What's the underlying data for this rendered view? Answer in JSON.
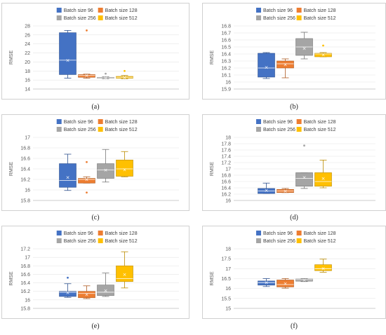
{
  "colors": {
    "s96": "#4472C4",
    "s128": "#ED7D31",
    "s256": "#A5A5A5",
    "s512": "#FFC000"
  },
  "chart_data": [
    {
      "type": "box",
      "caption": "(a)",
      "ylabel": "RMSE",
      "ylim": [
        14,
        28
      ],
      "yticks": [
        "14",
        "16",
        "18",
        "20",
        "22",
        "24",
        "26",
        "28"
      ],
      "series": [
        {
          "name": "Batch size 96",
          "min": 16.4,
          "q1": 17.2,
          "median": 20.4,
          "q3": 26.5,
          "max": 27.0,
          "mean": 20.4,
          "outliers": []
        },
        {
          "name": "Batch size 128",
          "min": 16.4,
          "q1": 16.6,
          "median": 17.0,
          "q3": 17.2,
          "max": 17.3,
          "mean": 17.0,
          "outliers": [
            27.0
          ]
        },
        {
          "name": "Batch size 256",
          "min": 16.3,
          "q1": 16.4,
          "median": 16.5,
          "q3": 16.6,
          "max": 16.7,
          "mean": 16.5,
          "outliers": [
            17.4
          ]
        },
        {
          "name": "Batch size 512",
          "min": 16.3,
          "q1": 16.4,
          "median": 16.6,
          "q3": 16.8,
          "max": 17.0,
          "mean": 16.6,
          "outliers": [
            18.0
          ]
        }
      ]
    },
    {
      "type": "box",
      "caption": "(b)",
      "ylabel": "RMSE",
      "ylim": [
        15.9,
        16.8
      ],
      "yticks": [
        "15.9",
        "16",
        "16.1",
        "16.2",
        "16.3",
        "16.4",
        "16.5",
        "16.6",
        "16.7",
        "16.8"
      ],
      "series": [
        {
          "name": "Batch size 96",
          "min": 16.05,
          "q1": 16.07,
          "median": 16.2,
          "q3": 16.41,
          "max": 16.42,
          "mean": 16.21,
          "outliers": []
        },
        {
          "name": "Batch size 128",
          "min": 16.06,
          "q1": 16.2,
          "median": 16.26,
          "q3": 16.3,
          "max": 16.33,
          "mean": 16.25,
          "outliers": []
        },
        {
          "name": "Batch size 256",
          "min": 16.33,
          "q1": 16.38,
          "median": 16.5,
          "q3": 16.62,
          "max": 16.71,
          "mean": 16.48,
          "outliers": []
        },
        {
          "name": "Batch size 512",
          "min": 16.36,
          "q1": 16.36,
          "median": 16.4,
          "q3": 16.41,
          "max": 16.42,
          "mean": 16.39,
          "outliers": [
            16.52
          ]
        }
      ]
    },
    {
      "type": "box",
      "caption": "(c)",
      "ylabel": "RMSE",
      "ylim": [
        15.8,
        17.0
      ],
      "yticks": [
        "15.8",
        "16",
        "16.2",
        "16.4",
        "16.6",
        "16.8",
        "17"
      ],
      "series": [
        {
          "name": "Batch size 96",
          "min": 15.99,
          "q1": 16.05,
          "median": 16.18,
          "q3": 16.5,
          "max": 16.68,
          "mean": 16.24,
          "outliers": []
        },
        {
          "name": "Batch size 128",
          "min": 16.13,
          "q1": 16.13,
          "median": 16.2,
          "q3": 16.22,
          "max": 16.25,
          "mean": 16.2,
          "outliers": [
            16.53,
            15.95
          ]
        },
        {
          "name": "Batch size 256",
          "min": 16.15,
          "q1": 16.22,
          "median": 16.38,
          "q3": 16.5,
          "max": 16.77,
          "mean": 16.38,
          "outliers": []
        },
        {
          "name": "Batch size 512",
          "min": 16.25,
          "q1": 16.26,
          "median": 16.4,
          "q3": 16.57,
          "max": 16.73,
          "mean": 16.39,
          "outliers": []
        }
      ]
    },
    {
      "type": "box",
      "caption": "(d)",
      "ylabel": "RMSE",
      "ylim": [
        16,
        18
      ],
      "yticks": [
        "16",
        "16.2",
        "16.4",
        "16.6",
        "16.8",
        "17",
        "17.2",
        "17.4",
        "17.6",
        "17.8",
        "18"
      ],
      "series": [
        {
          "name": "Batch size 96",
          "min": 16.22,
          "q1": 16.22,
          "median": 16.3,
          "q3": 16.38,
          "max": 16.55,
          "mean": 16.32,
          "outliers": []
        },
        {
          "name": "Batch size 128",
          "min": 16.25,
          "q1": 16.25,
          "median": 16.3,
          "q3": 16.35,
          "max": 16.38,
          "mean": 16.3,
          "outliers": []
        },
        {
          "name": "Batch size 256",
          "min": 16.38,
          "q1": 16.45,
          "median": 16.7,
          "q3": 16.88,
          "max": 16.88,
          "mean": 16.73,
          "outliers": [
            17.74
          ]
        },
        {
          "name": "Batch size 512",
          "min": 16.4,
          "q1": 16.45,
          "median": 16.6,
          "q3": 16.88,
          "max": 17.28,
          "mean": 16.7,
          "outliers": []
        }
      ]
    },
    {
      "type": "box",
      "caption": "(e)",
      "ylabel": "RMSE",
      "ylim": [
        15.8,
        17.2
      ],
      "yticks": [
        "15.8",
        "16",
        "16.2",
        "16.4",
        "16.6",
        "16.8",
        "17",
        "17.2"
      ],
      "series": [
        {
          "name": "Batch size 96",
          "min": 16.06,
          "q1": 16.08,
          "median": 16.18,
          "q3": 16.2,
          "max": 16.38,
          "mean": 16.17,
          "outliers": [
            16.52
          ]
        },
        {
          "name": "Batch size 128",
          "min": 16.03,
          "q1": 16.05,
          "median": 16.15,
          "q3": 16.2,
          "max": 16.33,
          "mean": 16.13,
          "outliers": []
        },
        {
          "name": "Batch size 256",
          "min": 16.08,
          "q1": 16.1,
          "median": 16.18,
          "q3": 16.35,
          "max": 16.63,
          "mean": 16.22,
          "outliers": []
        },
        {
          "name": "Batch size 512",
          "min": 16.28,
          "q1": 16.43,
          "median": 16.5,
          "q3": 16.8,
          "max": 17.13,
          "mean": 16.6,
          "outliers": []
        }
      ]
    },
    {
      "type": "box",
      "caption": "(f)",
      "ylabel": "RMSE",
      "ylim": [
        15,
        18
      ],
      "yticks": [
        "15",
        "15.5",
        "16",
        "16.5",
        "17",
        "17.5",
        "18"
      ],
      "series": [
        {
          "name": "Batch size 96",
          "min": 16.1,
          "q1": 16.17,
          "median": 16.3,
          "q3": 16.38,
          "max": 16.5,
          "mean": 16.3,
          "outliers": []
        },
        {
          "name": "Batch size 128",
          "min": 16.02,
          "q1": 16.08,
          "median": 16.2,
          "q3": 16.43,
          "max": 16.5,
          "mean": 16.25,
          "outliers": []
        },
        {
          "name": "Batch size 256",
          "min": 16.35,
          "q1": 16.37,
          "median": 16.45,
          "q3": 16.48,
          "max": 16.5,
          "mean": 16.43,
          "outliers": []
        },
        {
          "name": "Batch size 512",
          "min": 16.82,
          "q1": 16.9,
          "median": 17.0,
          "q3": 17.2,
          "max": 17.48,
          "mean": 17.02,
          "outliers": []
        }
      ]
    }
  ]
}
